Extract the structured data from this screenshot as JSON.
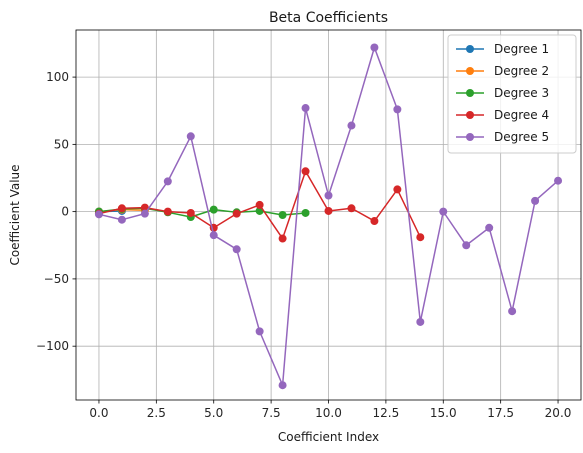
{
  "chart_data": {
    "type": "line",
    "title": "Beta Coefficients",
    "xlabel": "Coefficient Index",
    "ylabel": "Coefficient Value",
    "xlim": [
      -1.0,
      21.0
    ],
    "ylim": [
      -140,
      135
    ],
    "x_ticks": [
      0.0,
      2.5,
      5.0,
      7.5,
      10.0,
      12.5,
      15.0,
      17.5,
      20.0
    ],
    "x_tick_labels": [
      "0.0",
      "2.5",
      "5.0",
      "7.5",
      "10.0",
      "12.5",
      "15.0",
      "17.5",
      "20.0"
    ],
    "y_ticks": [
      -100,
      -50,
      0,
      50,
      100
    ],
    "y_tick_labels": [
      "−100",
      "−50",
      "0",
      "50",
      "100"
    ],
    "grid": true,
    "legend_position": "top-right",
    "series": [
      {
        "name": "Degree 1",
        "color": "#1f77b4",
        "points": [
          [
            0,
            0
          ],
          [
            1,
            0.5
          ]
        ]
      },
      {
        "name": "Degree 2",
        "color": "#ff7f0e",
        "points": [
          [
            0,
            0
          ],
          [
            1,
            1.5
          ],
          [
            2,
            1
          ]
        ]
      },
      {
        "name": "Degree 3",
        "color": "#2ca02c",
        "points": [
          [
            0,
            0
          ],
          [
            1,
            2
          ],
          [
            2,
            2.5
          ],
          [
            3,
            -0.5
          ],
          [
            4,
            -4
          ],
          [
            5,
            1.5
          ],
          [
            6,
            -0.5
          ],
          [
            7,
            0.5
          ],
          [
            8,
            -2.5
          ],
          [
            9,
            -1
          ]
        ]
      },
      {
        "name": "Degree 4",
        "color": "#d62728",
        "points": [
          [
            0,
            -1.5
          ],
          [
            1,
            2.5
          ],
          [
            2,
            3
          ],
          [
            3,
            0
          ],
          [
            4,
            -1
          ],
          [
            5,
            -12
          ],
          [
            6,
            -1.5
          ],
          [
            7,
            5
          ],
          [
            8,
            -20
          ],
          [
            9,
            30
          ],
          [
            10,
            0.5
          ],
          [
            11,
            2.5
          ],
          [
            12,
            -7
          ],
          [
            13,
            16.5
          ],
          [
            14,
            -19
          ]
        ]
      },
      {
        "name": "Degree 5",
        "color": "#9467bd",
        "points": [
          [
            0,
            -2
          ],
          [
            1,
            -6
          ],
          [
            2,
            -1.5
          ],
          [
            3,
            22.5
          ],
          [
            4,
            56
          ],
          [
            5,
            -17.5
          ],
          [
            6,
            -28
          ],
          [
            7,
            -89
          ],
          [
            8,
            -129
          ],
          [
            9,
            77
          ],
          [
            10,
            12
          ],
          [
            11,
            64
          ],
          [
            12,
            122
          ],
          [
            13,
            76
          ],
          [
            14,
            -82
          ],
          [
            15,
            0
          ],
          [
            16,
            -25
          ],
          [
            17,
            -12
          ],
          [
            18,
            -74
          ],
          [
            19,
            8
          ],
          [
            20,
            23
          ]
        ]
      }
    ]
  }
}
